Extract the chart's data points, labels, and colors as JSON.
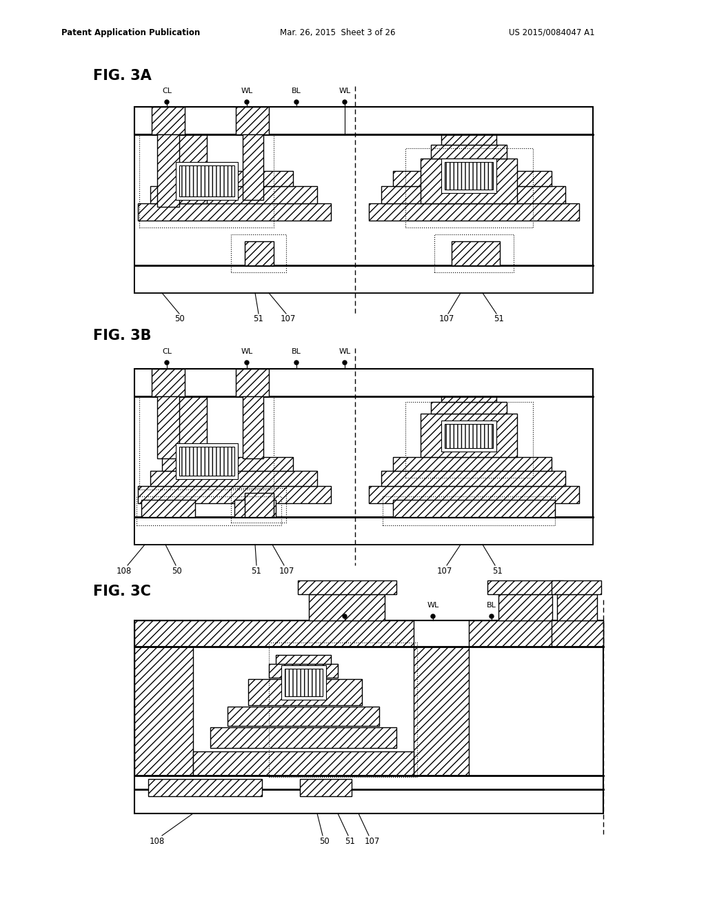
{
  "bg_color": "#ffffff",
  "header_left": "Patent Application Publication",
  "header_mid": "Mar. 26, 2015  Sheet 3 of 26",
  "header_right": "US 2015/0084047 A1",
  "hatch": "///",
  "lc": "#000000"
}
